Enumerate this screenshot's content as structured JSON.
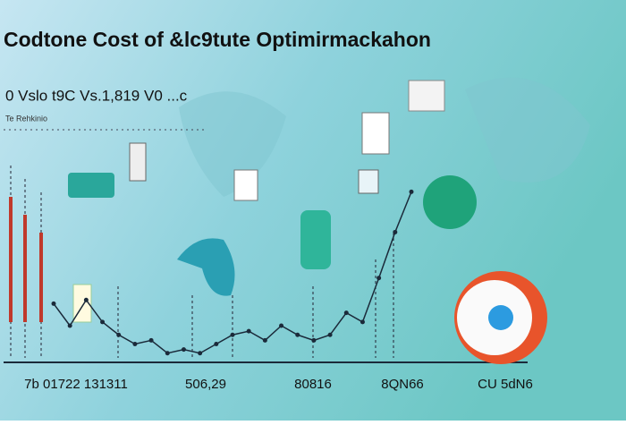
{
  "chart_data": {
    "type": "line",
    "title": "Codtone Cost of &lc9tute Optimirmackahon",
    "subtitle": "0  Vslo  t9C  Vs.1,819 V0  ...c",
    "label": "Te Rehkinio",
    "x_labels": [
      "7b 01722 131311",
      "506,29",
      "80816",
      "8QN66",
      "CU 5dN6"
    ],
    "ylim": [
      0,
      100
    ],
    "series": [
      {
        "color": "#1b2a3a",
        "values": [
          32,
          20,
          34,
          22,
          15,
          10,
          12,
          5,
          7,
          5,
          10,
          15,
          17,
          12,
          20,
          15,
          12,
          15,
          27,
          22,
          46,
          71,
          93
        ]
      }
    ]
  }
}
